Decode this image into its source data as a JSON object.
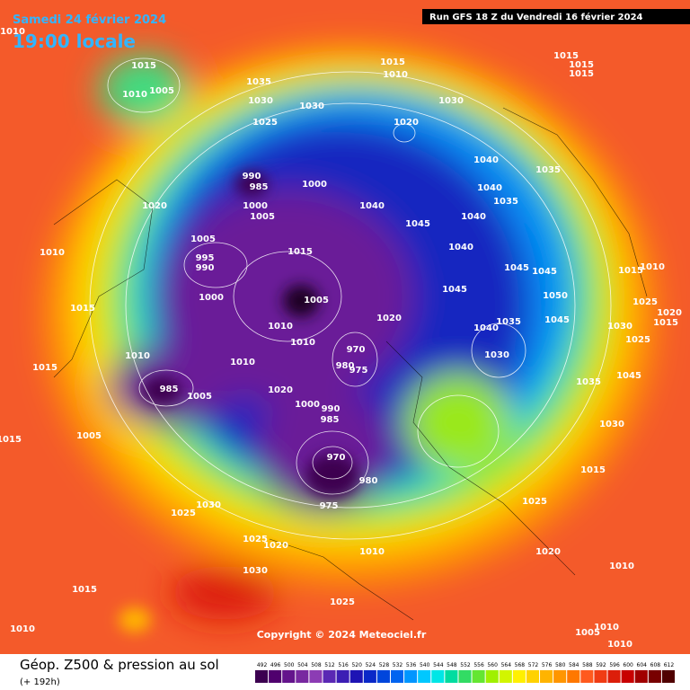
{
  "header": {
    "date": "Samedi 24 février 2024",
    "time": "19:00 locale",
    "run": "Run GFS 18 Z du Vendredi 16 février 2024"
  },
  "footer": {
    "title": "Géop. Z500 & pression au sol",
    "lead": "(+ 192h)",
    "copyright": "Copyright © 2024 Meteociel.fr"
  },
  "scale": {
    "labels": [
      492,
      496,
      500,
      504,
      508,
      512,
      516,
      520,
      524,
      528,
      532,
      536,
      540,
      544,
      548,
      552,
      556,
      560,
      564,
      568,
      572,
      576,
      580,
      584,
      588,
      592,
      596,
      600,
      604,
      608,
      612
    ],
    "colors": [
      "#3c0050",
      "#50006e",
      "#64148c",
      "#7828a0",
      "#8c3cb4",
      "#5a28b4",
      "#3c1eb4",
      "#1e14b4",
      "#0a28c8",
      "#0046dc",
      "#0064f0",
      "#0096ff",
      "#00c8ff",
      "#00e6e6",
      "#00dca0",
      "#32dc64",
      "#64e632",
      "#a0f000",
      "#d2f500",
      "#fff000",
      "#ffd200",
      "#ffb400",
      "#ff9600",
      "#ff7800",
      "#ff5a1e",
      "#f03c14",
      "#dc1e0a",
      "#c80000",
      "#a00000",
      "#780000",
      "#500000"
    ]
  },
  "isobars": [
    1010,
    1015,
    1010,
    1005,
    1035,
    1030,
    1025,
    1030,
    1015,
    1010,
    1030,
    1020,
    1015,
    1015,
    1015,
    990,
    985,
    1000,
    1000,
    1005,
    1020,
    1005,
    995,
    990,
    1000,
    1010,
    1015,
    1015,
    1015,
    1005,
    1010,
    1010,
    1020,
    970,
    980,
    975,
    1010,
    1010,
    985,
    1005,
    1020,
    1000,
    990,
    985,
    1005,
    1015,
    970,
    980,
    975,
    1030,
    1025,
    1025,
    1020,
    1010,
    1030,
    1015,
    1025,
    1010,
    1020,
    1025,
    1010,
    1015,
    1030,
    1035,
    1045,
    1025,
    1030,
    1025,
    1015,
    1010,
    1020,
    1015,
    1050,
    1045,
    1045,
    1035,
    1030,
    1040,
    1045,
    1040,
    1040,
    1040,
    1035,
    1040,
    1035,
    1040,
    1045,
    1045,
    1005,
    1010,
    1010
  ]
}
